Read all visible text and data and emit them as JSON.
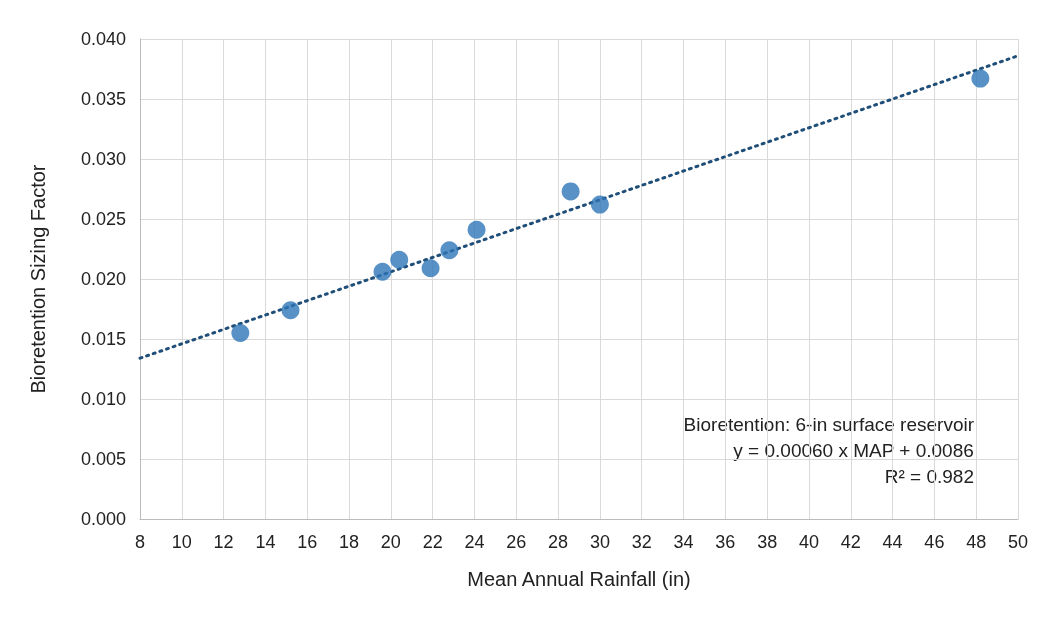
{
  "chart_data": {
    "type": "scatter",
    "xlabel": "Mean Annual Rainfall (in)",
    "ylabel": "Bioretention Sizing Factor",
    "series": [
      {
        "color": "#2e75b6",
        "x": [
          12.8,
          15.2,
          19.6,
          20.4,
          21.9,
          22.8,
          24.1,
          28.6,
          30.0,
          48.2
        ],
        "values": [
          0.0155,
          0.0174,
          0.0206,
          0.0216,
          0.0209,
          0.0224,
          0.0241,
          0.0273,
          0.0262,
          0.0367
        ]
      },
      {
        "type": "line",
        "color": "#1f4e79",
        "line_style": "dotted",
        "marker": "none",
        "x": [
          8,
          50
        ],
        "values": [
          0.0134,
          0.0386
        ]
      }
    ],
    "xlim": [
      8,
      50
    ],
    "xticks": [
      8,
      10,
      12,
      14,
      16,
      18,
      20,
      22,
      24,
      26,
      28,
      30,
      32,
      34,
      36,
      38,
      40,
      42,
      44,
      46,
      48,
      50
    ],
    "ylim": [
      0,
      0.04
    ],
    "yticks": [
      {
        "value": 0,
        "label": "0.000"
      },
      {
        "value": 0.005,
        "label": "0.005"
      },
      {
        "value": 0.01,
        "label": "0.010"
      },
      {
        "value": 0.015,
        "label": "0.015"
      },
      {
        "value": 0.02,
        "label": "0.020"
      },
      {
        "value": 0.025,
        "label": "0.025"
      },
      {
        "value": 0.03,
        "label": "0.030"
      },
      {
        "value": 0.035,
        "label": "0.035"
      },
      {
        "value": 0.04,
        "label": "0.040"
      }
    ],
    "grid": true,
    "marker": "circle",
    "annotations": [
      "Bioretention: 6-in surface reservoir",
      "y = 0.00060 x MAP + 0.0086",
      "R² = 0.982"
    ]
  }
}
